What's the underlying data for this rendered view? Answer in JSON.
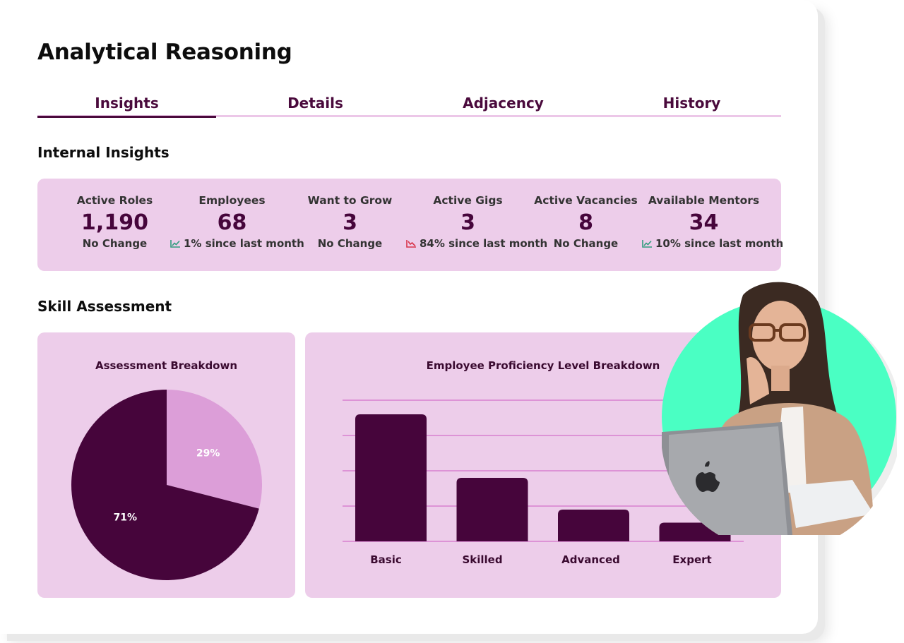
{
  "page": {
    "title": "Analytical Reasoning"
  },
  "tabs": [
    {
      "label": "Insights",
      "active": true
    },
    {
      "label": "Details",
      "active": false
    },
    {
      "label": "Adjacency",
      "active": false
    },
    {
      "label": "History",
      "active": false
    }
  ],
  "internal_insights": {
    "heading": "Internal Insights",
    "stats": [
      {
        "label": "Active Roles",
        "value": "1,190",
        "change": "No Change",
        "trend": "none"
      },
      {
        "label": "Employees",
        "value": "68",
        "change": "1% since last month",
        "trend": "up"
      },
      {
        "label": "Want to Grow",
        "value": "3",
        "change": "No Change",
        "trend": "none"
      },
      {
        "label": "Active Gigs",
        "value": "3",
        "change": "84% since last month",
        "trend": "down"
      },
      {
        "label": "Active Vacancies",
        "value": "8",
        "change": "No Change",
        "trend": "none"
      },
      {
        "label": "Available Mentors",
        "value": "34",
        "change": "10% since last month",
        "trend": "up"
      }
    ]
  },
  "skill_assessment": {
    "heading": "Skill Assessment",
    "assessment_breakdown_title": "Assessment Breakdown",
    "proficiency_title": "Employee Proficiency Level Breakdown"
  },
  "colors": {
    "accent": "#4a0a3c",
    "panel": "#edcdea",
    "pie_light": "#dc9ed8",
    "trend_up": "#2e9c7d",
    "trend_down": "#d8344a",
    "avatar_bg": "#4affc3"
  },
  "icons": [
    "trend-up-icon",
    "trend-down-icon",
    "laptop-icon"
  ],
  "chart_data": [
    {
      "type": "pie",
      "title": "Assessment Breakdown",
      "labels": [
        "71%",
        "29%"
      ],
      "values": [
        71,
        29
      ],
      "colors": [
        "#46053b",
        "#dc9ed8"
      ]
    },
    {
      "type": "bar",
      "title": "Employee Proficiency Level Breakdown",
      "categories": [
        "Basic",
        "Skilled",
        "Advanced",
        "Expert"
      ],
      "values": [
        36,
        18,
        9,
        5.3
      ],
      "ylim": [
        0,
        40
      ],
      "grid": true
    }
  ]
}
